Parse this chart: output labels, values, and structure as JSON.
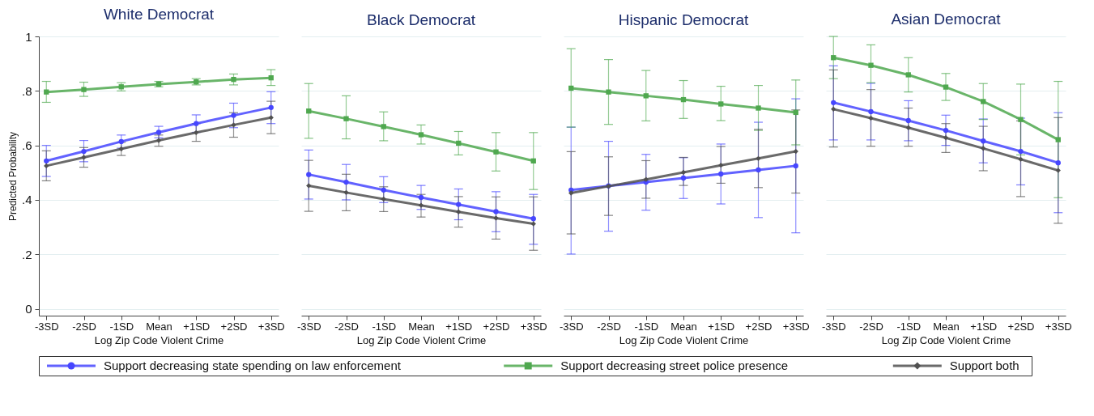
{
  "chart_data": [
    {
      "type": "line",
      "title": "White Democrat",
      "xlabel": "Log Zip Code Violent Crime",
      "ylabel": "Predicted Probability",
      "categories": [
        "-3SD",
        "-2SD",
        "-1SD",
        "Mean",
        "+1SD",
        "+2SD",
        "+3SD"
      ],
      "ylim": [
        -0.025,
        1.0
      ],
      "yticks": [
        0,
        {
          "value": 0.2,
          "label": ".2"
        },
        {
          "value": 0.4,
          "label": ".4"
        },
        {
          "value": 0.6,
          "label": ".6"
        },
        {
          "value": 0.8,
          "label": ".8"
        },
        1
      ],
      "grid": "y",
      "legend": "bottom",
      "series": [
        {
          "name": "Support decreasing state spending on law enforcement",
          "color": "#4646ff",
          "marker": "circle",
          "values": [
            0.543,
            0.578,
            0.614,
            0.648,
            0.68,
            0.71,
            0.739
          ],
          "errors": [
            [
              0.486,
              0.6
            ],
            [
              0.54,
              0.618
            ],
            [
              0.59,
              0.638
            ],
            [
              0.628,
              0.67
            ],
            [
              0.648,
              0.712
            ],
            [
              0.665,
              0.755
            ],
            [
              0.68,
              0.797
            ]
          ]
        },
        {
          "name": "Support decreasing street police presence",
          "color": "#4fa84f",
          "marker": "square",
          "values": [
            0.796,
            0.805,
            0.815,
            0.825,
            0.833,
            0.842,
            0.848
          ],
          "errors": [
            [
              0.758,
              0.835
            ],
            [
              0.78,
              0.832
            ],
            [
              0.8,
              0.83
            ],
            [
              0.815,
              0.835
            ],
            [
              0.822,
              0.845
            ],
            [
              0.822,
              0.862
            ],
            [
              0.82,
              0.878
            ]
          ]
        },
        {
          "name": "Support both",
          "color": "#505050",
          "marker": "diamond",
          "values": [
            0.525,
            0.556,
            0.587,
            0.618,
            0.647,
            0.675,
            0.702
          ],
          "errors": [
            [
              0.47,
              0.58
            ],
            [
              0.52,
              0.592
            ],
            [
              0.563,
              0.611
            ],
            [
              0.597,
              0.638
            ],
            [
              0.615,
              0.68
            ],
            [
              0.63,
              0.72
            ],
            [
              0.643,
              0.762
            ]
          ]
        }
      ]
    },
    {
      "type": "line",
      "title": "Black Democrat",
      "xlabel": "Log Zip Code Violent Crime",
      "categories": [
        "-3SD",
        "-2SD",
        "-1SD",
        "Mean",
        "+1SD",
        "+2SD",
        "+3SD"
      ],
      "ylim": [
        -0.025,
        1.0
      ],
      "yticks": [
        {
          "value": 0,
          "label": null
        },
        {
          "value": 0.2,
          "label": null
        },
        {
          "value": 0.4,
          "label": null
        },
        {
          "value": 0.6,
          "label": null
        },
        {
          "value": 0.8,
          "label": null
        },
        {
          "value": 1,
          "label": null
        }
      ],
      "grid": "y",
      "legend": "bottom",
      "tick_labels": "x",
      "series": [
        {
          "name": "Support decreasing state spending on law enforcement",
          "color": "#4646ff",
          "marker": "circle",
          "values": [
            0.493,
            0.465,
            0.436,
            0.409,
            0.383,
            0.357,
            0.331
          ],
          "errors": [
            [
              0.403,
              0.583
            ],
            [
              0.4,
              0.53
            ],
            [
              0.39,
              0.485
            ],
            [
              0.365,
              0.453
            ],
            [
              0.327,
              0.44
            ],
            [
              0.283,
              0.43
            ],
            [
              0.237,
              0.42
            ]
          ]
        },
        {
          "name": "Support decreasing street police presence",
          "color": "#4fa84f",
          "marker": "square",
          "values": [
            0.726,
            0.698,
            0.669,
            0.639,
            0.608,
            0.576,
            0.543
          ],
          "errors": [
            [
              0.626,
              0.827
            ],
            [
              0.624,
              0.782
            ],
            [
              0.617,
              0.723
            ],
            [
              0.605,
              0.675
            ],
            [
              0.565,
              0.651
            ],
            [
              0.506,
              0.647
            ],
            [
              0.438,
              0.647
            ]
          ]
        },
        {
          "name": "Support both",
          "color": "#505050",
          "marker": "diamond",
          "values": [
            0.452,
            0.427,
            0.403,
            0.38,
            0.356,
            0.333,
            0.312
          ],
          "errors": [
            [
              0.358,
              0.545
            ],
            [
              0.36,
              0.494
            ],
            [
              0.357,
              0.448
            ],
            [
              0.337,
              0.42
            ],
            [
              0.3,
              0.412
            ],
            [
              0.256,
              0.411
            ],
            [
              0.215,
              0.411
            ]
          ]
        }
      ]
    },
    {
      "type": "line",
      "title": "Hispanic Democrat",
      "xlabel": "Log Zip Code Violent Crime",
      "categories": [
        "-3SD",
        "-2SD",
        "-1SD",
        "Mean",
        "+1SD",
        "+2SD",
        "+3SD"
      ],
      "ylim": [
        -0.025,
        1.0
      ],
      "yticks": [
        {
          "value": 0,
          "label": null
        },
        {
          "value": 0.2,
          "label": null
        },
        {
          "value": 0.4,
          "label": null
        },
        {
          "value": 0.6,
          "label": null
        },
        {
          "value": 0.8,
          "label": null
        },
        {
          "value": 1,
          "label": null
        }
      ],
      "grid": "y",
      "legend": "bottom",
      "tick_labels": "x",
      "series": [
        {
          "name": "Support decreasing state spending on law enforcement",
          "color": "#4646ff",
          "marker": "circle",
          "values": [
            0.436,
            0.451,
            0.465,
            0.48,
            0.495,
            0.51,
            0.525
          ],
          "errors": [
            [
              0.201,
              0.667
            ],
            [
              0.285,
              0.615
            ],
            [
              0.362,
              0.567
            ],
            [
              0.405,
              0.555
            ],
            [
              0.385,
              0.605
            ],
            [
              0.335,
              0.685
            ],
            [
              0.279,
              0.771
            ]
          ]
        },
        {
          "name": "Support decreasing street police presence",
          "color": "#4fa84f",
          "marker": "square",
          "values": [
            0.81,
            0.796,
            0.782,
            0.768,
            0.752,
            0.737,
            0.721
          ],
          "errors": [
            [
              0.667,
              0.955
            ],
            [
              0.677,
              0.915
            ],
            [
              0.69,
              0.875
            ],
            [
              0.699,
              0.838
            ],
            [
              0.691,
              0.817
            ],
            [
              0.655,
              0.82
            ],
            [
              0.602,
              0.84
            ]
          ]
        },
        {
          "name": "Support both",
          "color": "#505050",
          "marker": "diamond",
          "values": [
            0.425,
            0.45,
            0.475,
            0.501,
            0.527,
            0.552,
            0.578
          ],
          "errors": [
            [
              0.275,
              0.577
            ],
            [
              0.343,
              0.558
            ],
            [
              0.406,
              0.544
            ],
            [
              0.453,
              0.556
            ],
            [
              0.461,
              0.596
            ],
            [
              0.445,
              0.659
            ],
            [
              0.425,
              0.73
            ]
          ]
        }
      ]
    },
    {
      "type": "line",
      "title": "Asian Democrat",
      "xlabel": "Log Zip Code Violent Crime",
      "categories": [
        "-3SD",
        "-2SD",
        "-1SD",
        "Mean",
        "+1SD",
        "+2SD",
        "+3SD"
      ],
      "ylim": [
        -0.025,
        1.0
      ],
      "yticks": [
        {
          "value": 0,
          "label": null
        },
        {
          "value": 0.2,
          "label": null
        },
        {
          "value": 0.4,
          "label": null
        },
        {
          "value": 0.6,
          "label": null
        },
        {
          "value": 0.8,
          "label": null
        },
        {
          "value": 1,
          "label": null
        }
      ],
      "grid": "y",
      "legend": "bottom",
      "tick_labels": "x",
      "series": [
        {
          "name": "Support decreasing state spending on law enforcement",
          "color": "#4646ff",
          "marker": "circle",
          "values": [
            0.757,
            0.724,
            0.691,
            0.655,
            0.616,
            0.578,
            0.536
          ],
          "errors": [
            [
              0.62,
              0.892
            ],
            [
              0.62,
              0.828
            ],
            [
              0.617,
              0.764
            ],
            [
              0.6,
              0.711
            ],
            [
              0.536,
              0.697
            ],
            [
              0.455,
              0.7
            ],
            [
              0.353,
              0.72
            ]
          ]
        },
        {
          "name": "Support decreasing street police presence",
          "color": "#4fa84f",
          "marker": "square",
          "values": [
            0.922,
            0.894,
            0.859,
            0.814,
            0.761,
            0.695,
            0.621
          ],
          "errors": [
            [
              0.845,
              1.0
            ],
            [
              0.83,
              0.969
            ],
            [
              0.796,
              0.922
            ],
            [
              0.765,
              0.864
            ],
            [
              0.695,
              0.827
            ],
            [
              0.565,
              0.825
            ],
            [
              0.408,
              0.835
            ]
          ]
        },
        {
          "name": "Support both",
          "color": "#505050",
          "marker": "diamond",
          "values": [
            0.733,
            0.7,
            0.665,
            0.628,
            0.589,
            0.549,
            0.508
          ],
          "errors": [
            [
              0.594,
              0.877
            ],
            [
              0.597,
              0.805
            ],
            [
              0.597,
              0.737
            ],
            [
              0.574,
              0.68
            ],
            [
              0.507,
              0.67
            ],
            [
              0.412,
              0.69
            ],
            [
              0.314,
              0.702
            ]
          ]
        }
      ]
    }
  ]
}
